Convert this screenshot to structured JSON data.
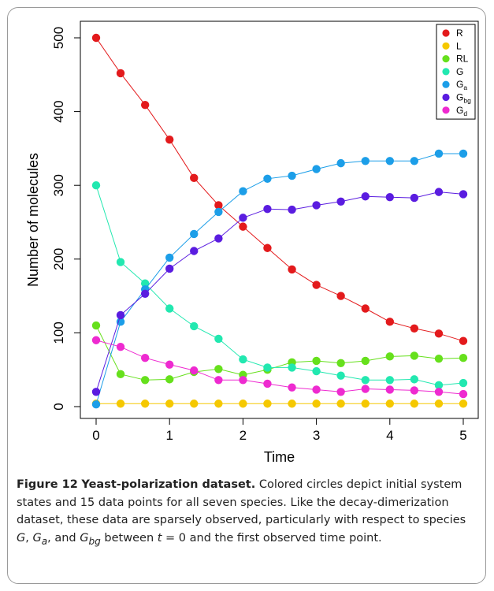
{
  "figure": {
    "label": "Figure 12",
    "title": "Yeast-polarization dataset.",
    "caption_parts": [
      " Colored circles depict initial system states and 15 data points for all seven species. Like the decay-dimerization dataset, these data are sparsely observed, particularly with respect to species ",
      "G",
      ", ",
      "G",
      "a",
      ", and ",
      "G",
      "bg",
      " between ",
      "t",
      " = 0 and the first observed time point."
    ]
  },
  "chart_data": {
    "type": "line",
    "xlabel": "Time",
    "ylabel": "Number of molecules",
    "xlim": [
      0,
      5
    ],
    "ylim": [
      0,
      500
    ],
    "xticks": [
      0,
      1,
      2,
      3,
      4,
      5
    ],
    "yticks": [
      0,
      100,
      200,
      300,
      400,
      500
    ],
    "legend_position": "top-right",
    "grid": false,
    "x": [
      0,
      0.333,
      0.667,
      1,
      1.333,
      1.667,
      2,
      2.333,
      2.667,
      3,
      3.333,
      3.667,
      4,
      4.333,
      4.667,
      5
    ],
    "series": [
      {
        "name": "R",
        "sub": "",
        "color": "#e31a1c",
        "values": [
          500,
          452,
          409,
          362,
          310,
          273,
          244,
          215,
          186,
          165,
          150,
          133,
          115,
          106,
          99,
          89
        ]
      },
      {
        "name": "L",
        "sub": "",
        "color": "#f5c800",
        "values": [
          4,
          4,
          4,
          4,
          4,
          4,
          4,
          4,
          4,
          4,
          4,
          4,
          4,
          4,
          4,
          4
        ]
      },
      {
        "name": "RL",
        "sub": "",
        "color": "#66e01c",
        "values": [
          110,
          44,
          36,
          37,
          47,
          51,
          43,
          50,
          60,
          62,
          59,
          62,
          68,
          69,
          65,
          66
        ]
      },
      {
        "name": "G",
        "sub": "",
        "color": "#22e8b0",
        "values": [
          300,
          196,
          167,
          133,
          109,
          92,
          64,
          53,
          53,
          48,
          42,
          36,
          36,
          37,
          29,
          32
        ]
      },
      {
        "name": "G",
        "sub": "a",
        "color": "#1c9ee8",
        "values": [
          3,
          115,
          159,
          202,
          234,
          264,
          292,
          309,
          313,
          322,
          330,
          333,
          333,
          333,
          343,
          343
        ]
      },
      {
        "name": "G",
        "sub": "bg",
        "color": "#5a1ce0",
        "values": [
          20,
          124,
          153,
          187,
          211,
          228,
          256,
          268,
          267,
          273,
          278,
          285,
          284,
          283,
          291,
          288
        ]
      },
      {
        "name": "G",
        "sub": "d",
        "color": "#ee2ad0",
        "values": [
          90,
          81,
          66,
          57,
          49,
          36,
          36,
          31,
          26,
          23,
          20,
          24,
          23,
          22,
          20,
          17
        ]
      }
    ]
  }
}
